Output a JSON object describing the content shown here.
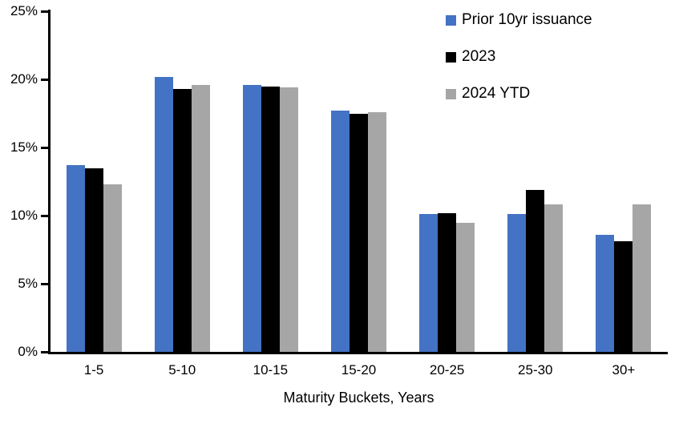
{
  "chart_data": {
    "type": "bar",
    "title": "",
    "categories": [
      "1-5",
      "5-10",
      "10-15",
      "15-20",
      "20-25",
      "25-30",
      "30+"
    ],
    "series": [
      {
        "name": "Prior 10yr issuance",
        "color": "#4472C4",
        "values": [
          13.7,
          20.2,
          19.6,
          17.7,
          10.1,
          10.1,
          8.6
        ]
      },
      {
        "name": "2023",
        "color": "#000000",
        "values": [
          13.5,
          19.3,
          19.5,
          17.5,
          10.2,
          11.9,
          8.1
        ]
      },
      {
        "name": "2024 YTD",
        "color": "#A6A6A6",
        "values": [
          12.3,
          19.6,
          19.4,
          17.6,
          9.5,
          10.8,
          10.8
        ]
      }
    ],
    "xlabel": "Maturity Buckets, Years",
    "ylabel": "",
    "ylim": [
      0,
      25
    ],
    "yticks": [
      0,
      5,
      10,
      15,
      20,
      25
    ],
    "ytick_labels": [
      "0%",
      "5%",
      "10%",
      "15%",
      "20%",
      "25%"
    ],
    "grid": false,
    "legend_position": "top-right",
    "axis_color": "#000000",
    "background_color": "#FFFFFF"
  }
}
